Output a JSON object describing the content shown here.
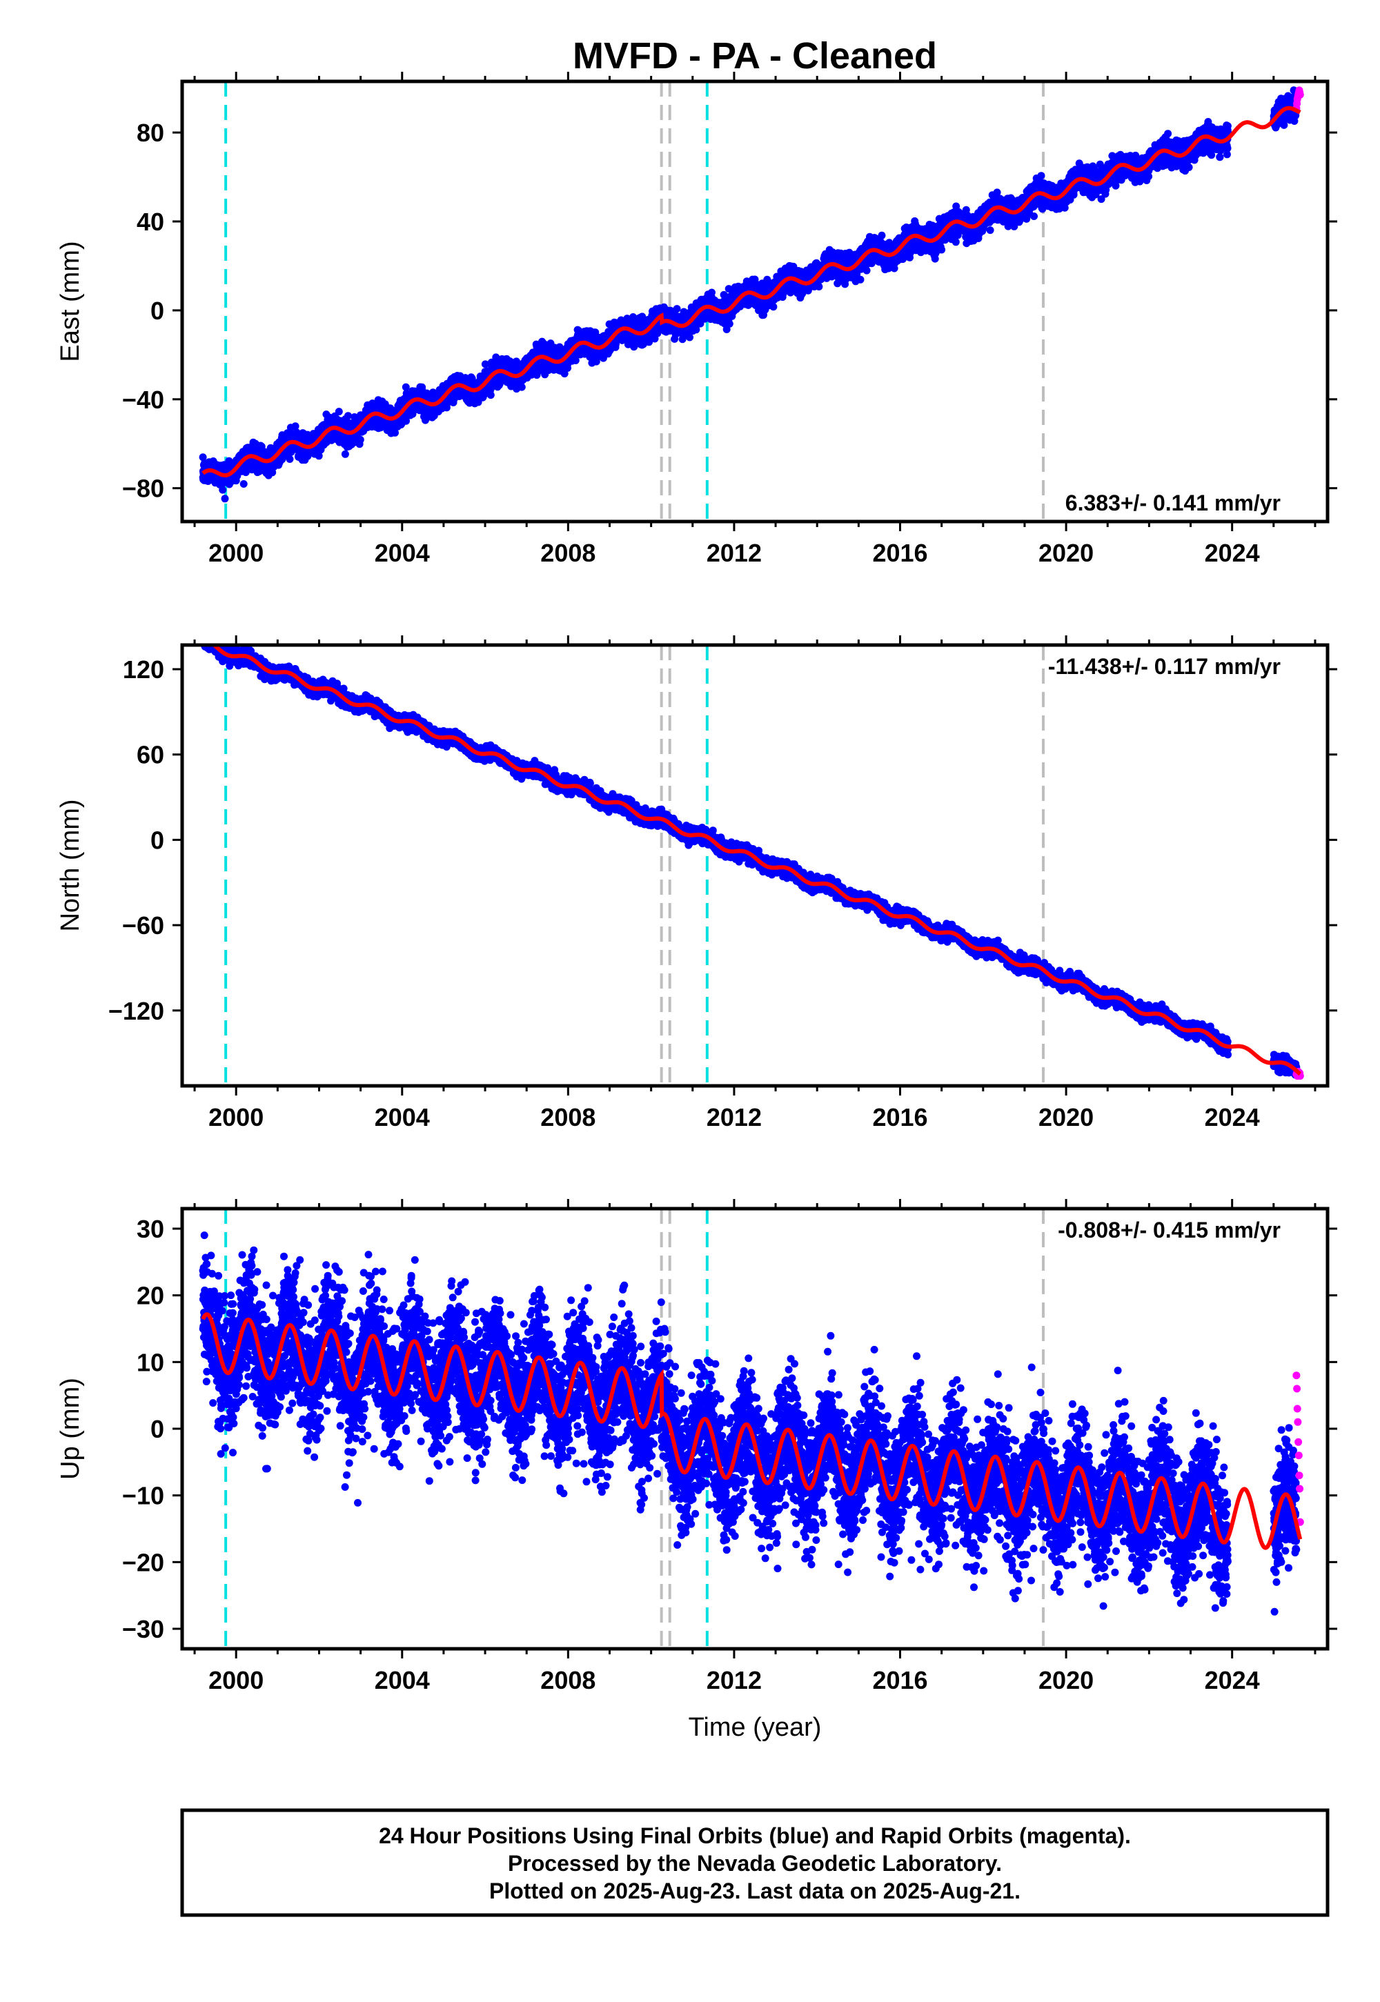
{
  "title": "MVFD  - PA - Cleaned",
  "xlabel": "Time (year)",
  "xticks": [
    2000,
    2004,
    2008,
    2012,
    2016,
    2020,
    2024
  ],
  "colors": {
    "final_orbits": "#0000ff",
    "rapid_orbits": "#ff00ff",
    "model_fit": "#ff0000",
    "antenna_change": "#00e0e0",
    "equipment_change": "#bebebe"
  },
  "vertical_markers": {
    "cyan": [
      1999.75,
      2011.35
    ],
    "gray": [
      2010.25,
      2010.45,
      2019.45
    ]
  },
  "footer": {
    "line1": "24 Hour Positions Using Final Orbits (blue) and Rapid Orbits (magenta).",
    "line2": "Processed by the Nevada Geodetic Laboratory.",
    "line3": "Plotted on 2025-Aug-23. Last data on 2025-Aug-21."
  },
  "chart_data": [
    {
      "type": "scatter",
      "component": "east",
      "ylabel": "East (mm)",
      "rate_label": "6.383+/- 0.141 mm/yr",
      "xlim": [
        1998.7,
        2026.3
      ],
      "ylim": [
        -95,
        103
      ],
      "yticks": [
        -80,
        -40,
        0,
        40,
        80
      ],
      "trend": {
        "slope_mm_per_yr": 6.383,
        "value_at_2011": 0
      },
      "offsets": [
        {
          "year": 2010.25,
          "step": -3
        },
        {
          "year": 2010.45,
          "step": 0
        },
        {
          "year": 2019.45,
          "step": 0
        }
      ],
      "seasonal_amplitude": 2.5,
      "scatter_sd": 2.6,
      "data_start": 1999.2,
      "data_end": 2025.55,
      "gaps": [
        [
          2023.9,
          2025.0
        ]
      ],
      "rapid_orbits": {
        "start": 2025.55,
        "end": 2025.64,
        "values": [
          91,
          93,
          95,
          96,
          97,
          98,
          99,
          98,
          97
        ]
      }
    },
    {
      "type": "scatter",
      "component": "north",
      "ylabel": "North (mm)",
      "rate_label": "-11.438+/- 0.117 mm/yr",
      "xlim": [
        1998.7,
        2026.3
      ],
      "ylim": [
        -173,
        137
      ],
      "yticks": [
        -120,
        -60,
        0,
        60,
        120
      ],
      "trend": {
        "slope_mm_per_yr": -11.438,
        "value_at_2011": 4
      },
      "offsets": [],
      "seasonal_amplitude": 2.2,
      "scatter_sd": 2.3,
      "data_start": 1999.2,
      "data_end": 2025.55,
      "gaps": [
        [
          2023.9,
          2025.0
        ]
      ],
      "rapid_orbits": {
        "start": 2025.55,
        "end": 2025.64,
        "values": [
          -165,
          -164,
          -166,
          -165,
          -163,
          -166,
          -165,
          -164,
          -166
        ]
      }
    },
    {
      "type": "scatter",
      "component": "up",
      "ylabel": "Up (mm)",
      "rate_label": "-0.808+/- 0.415 mm/yr",
      "xlim": [
        1998.7,
        2026.3
      ],
      "ylim": [
        -33,
        33
      ],
      "yticks": [
        -30,
        -20,
        -10,
        0,
        10,
        20,
        30
      ],
      "trend": {
        "slope_mm_per_yr": -0.808,
        "value_at_2011": 3.5
      },
      "offsets": [
        {
          "year": 2010.25,
          "step": -6
        },
        {
          "year": 2010.45,
          "step": 0
        }
      ],
      "seasonal_amplitude": 4.2,
      "scatter_sd": 4.6,
      "data_start": 1999.2,
      "data_end": 2025.55,
      "gaps": [
        [
          2023.9,
          2025.0
        ]
      ],
      "rapid_orbits": {
        "start": 2025.55,
        "end": 2025.64,
        "values": [
          8,
          6,
          3,
          1,
          -2,
          -4,
          -7,
          -9,
          -14
        ]
      }
    }
  ]
}
